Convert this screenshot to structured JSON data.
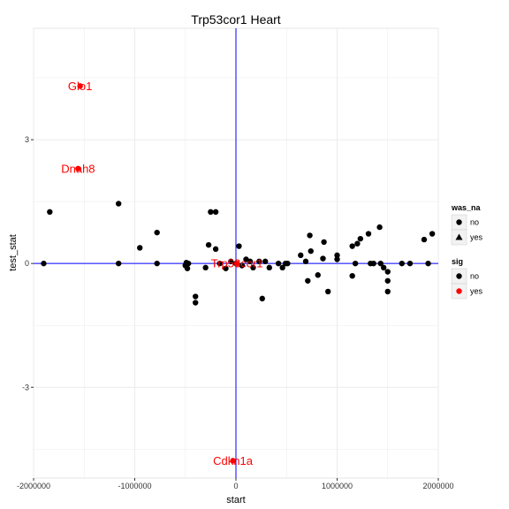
{
  "chart_data": {
    "type": "scatter",
    "title": "Trp53cor1 Heart",
    "xlabel": "start",
    "ylabel": "test_stat",
    "xlim": [
      -2000000,
      2000000
    ],
    "ylim": [
      -5.2,
      5.7
    ],
    "x_ticks": [
      {
        "value": -2000000,
        "label": "-2000000"
      },
      {
        "value": -1000000,
        "label": "-1000000"
      },
      {
        "value": 0,
        "label": "0"
      },
      {
        "value": 1000000,
        "label": "1000000"
      },
      {
        "value": 2000000,
        "label": "2000000"
      }
    ],
    "y_ticks": [
      {
        "value": -3,
        "label": "-3"
      },
      {
        "value": 0,
        "label": "0"
      },
      {
        "value": 3,
        "label": "3"
      }
    ],
    "grid": true,
    "reference_lines": {
      "vertical_x": 0,
      "horizontal_y": 0,
      "color": "#0000ff"
    },
    "colors": {
      "not_sig": "#000000",
      "sig": "#ff0000",
      "panel_bg": "#ffffff",
      "grid": "#ebebeb"
    },
    "legends": [
      {
        "title": "was_na",
        "position": "right",
        "entries": [
          {
            "label": "no",
            "shape": "circle",
            "color": "#000000"
          },
          {
            "label": "yes",
            "shape": "triangle",
            "color": "#000000"
          }
        ]
      },
      {
        "title": "sig",
        "position": "right",
        "entries": [
          {
            "label": "no",
            "shape": "circle",
            "color": "#000000"
          },
          {
            "label": "yes",
            "shape": "circle",
            "color": "#ff0000"
          }
        ]
      }
    ],
    "points": [
      {
        "x": -1900000,
        "y": 0.0
      },
      {
        "x": -1840000,
        "y": 1.25
      },
      {
        "x": -1160000,
        "y": 1.45
      },
      {
        "x": -1160000,
        "y": 0.0
      },
      {
        "x": -950000,
        "y": 0.38
      },
      {
        "x": -780000,
        "y": 0.75
      },
      {
        "x": -780000,
        "y": 0.0
      },
      {
        "x": -500000,
        "y": -0.05
      },
      {
        "x": -490000,
        "y": 0.02
      },
      {
        "x": -480000,
        "y": -0.12
      },
      {
        "x": -470000,
        "y": 0.0
      },
      {
        "x": -400000,
        "y": -0.8
      },
      {
        "x": -400000,
        "y": -0.95
      },
      {
        "x": -300000,
        "y": -0.1
      },
      {
        "x": -270000,
        "y": 0.45
      },
      {
        "x": -250000,
        "y": 1.25
      },
      {
        "x": -200000,
        "y": 1.25
      },
      {
        "x": -200000,
        "y": 0.35
      },
      {
        "x": -160000,
        "y": 0.0
      },
      {
        "x": -100000,
        "y": -0.12
      },
      {
        "x": -50000,
        "y": 0.05
      },
      {
        "x": 0,
        "y": 0.0
      },
      {
        "x": 30000,
        "y": 0.42
      },
      {
        "x": 60000,
        "y": -0.05
      },
      {
        "x": 100000,
        "y": 0.1
      },
      {
        "x": 140000,
        "y": 0.05
      },
      {
        "x": 170000,
        "y": -0.1
      },
      {
        "x": 230000,
        "y": 0.05
      },
      {
        "x": 260000,
        "y": -0.85
      },
      {
        "x": 290000,
        "y": 0.05
      },
      {
        "x": 330000,
        "y": -0.1
      },
      {
        "x": 420000,
        "y": 0.0
      },
      {
        "x": 460000,
        "y": -0.1
      },
      {
        "x": 490000,
        "y": 0.0
      },
      {
        "x": 510000,
        "y": 0.0
      },
      {
        "x": 640000,
        "y": 0.2
      },
      {
        "x": 690000,
        "y": 0.05
      },
      {
        "x": 710000,
        "y": -0.42
      },
      {
        "x": 730000,
        "y": 0.68
      },
      {
        "x": 740000,
        "y": 0.3
      },
      {
        "x": 810000,
        "y": -0.28
      },
      {
        "x": 860000,
        "y": 0.12
      },
      {
        "x": 870000,
        "y": 0.52
      },
      {
        "x": 910000,
        "y": -0.68
      },
      {
        "x": 1000000,
        "y": 0.2
      },
      {
        "x": 1000000,
        "y": 0.1
      },
      {
        "x": 1150000,
        "y": 0.42
      },
      {
        "x": 1150000,
        "y": -0.3
      },
      {
        "x": 1180000,
        "y": 0.0
      },
      {
        "x": 1200000,
        "y": 0.48
      },
      {
        "x": 1230000,
        "y": 0.6
      },
      {
        "x": 1310000,
        "y": 0.72
      },
      {
        "x": 1330000,
        "y": 0.0
      },
      {
        "x": 1360000,
        "y": 0.0
      },
      {
        "x": 1420000,
        "y": 0.88
      },
      {
        "x": 1430000,
        "y": 0.0
      },
      {
        "x": 1460000,
        "y": -0.1
      },
      {
        "x": 1500000,
        "y": -0.2
      },
      {
        "x": 1500000,
        "y": -0.42
      },
      {
        "x": 1500000,
        "y": -0.68
      },
      {
        "x": 1640000,
        "y": 0.0
      },
      {
        "x": 1720000,
        "y": 0.0
      },
      {
        "x": 1860000,
        "y": 0.58
      },
      {
        "x": 1900000,
        "y": 0.0
      },
      {
        "x": 1940000,
        "y": 0.72
      }
    ],
    "sig_points": [
      {
        "x": -1540000,
        "y": 4.3,
        "label": "Glo1"
      },
      {
        "x": -1560000,
        "y": 2.3,
        "label": "Dnah8"
      },
      {
        "x": -30000,
        "y": -4.78,
        "label": "Cdkn1a"
      },
      {
        "x": 10000,
        "y": 0.0,
        "label": "Trp53cor1"
      }
    ]
  }
}
